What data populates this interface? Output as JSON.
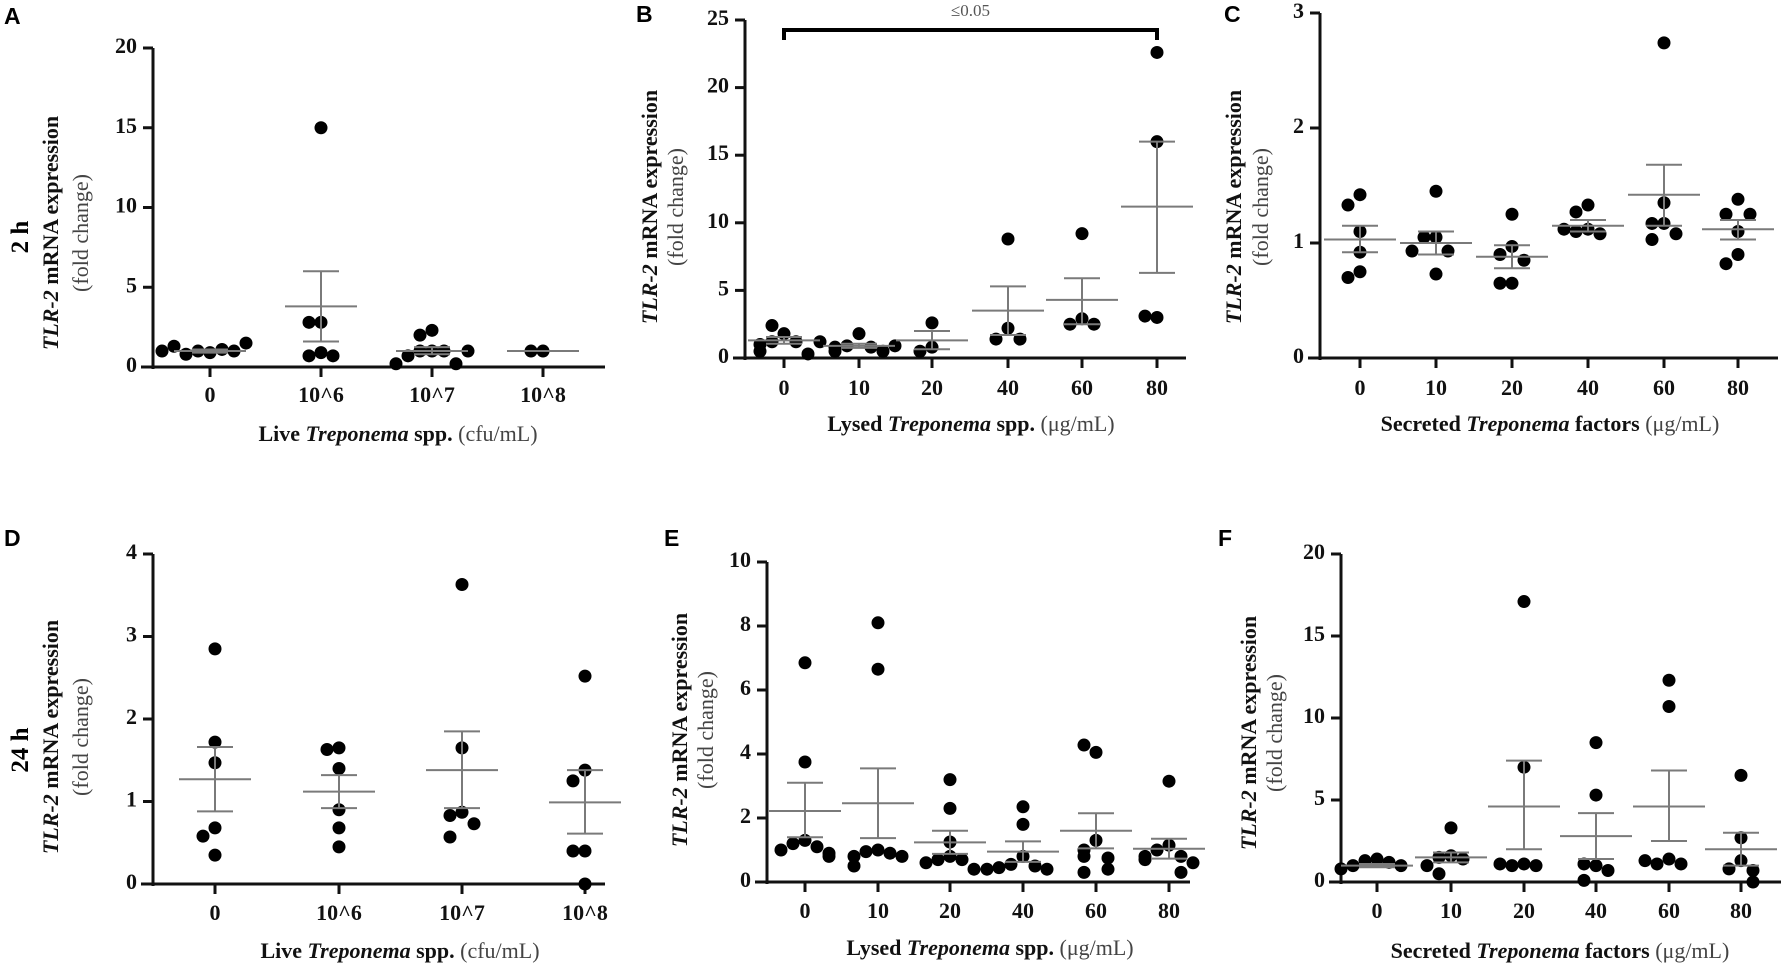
{
  "row_labels": [
    "2 h",
    "24 h"
  ],
  "chart_data": [
    {
      "panel": "A",
      "type": "scatter",
      "row": 0,
      "categories": [
        "0",
        "10^6",
        "10^7",
        "10^8"
      ],
      "ylim": [
        0,
        20
      ],
      "yticks": [
        "0",
        "5",
        "10",
        "15",
        "20"
      ],
      "ylabel": [
        {
          "text": "TLR-2",
          "style": "bi"
        },
        {
          "text": " mRNA expression",
          "style": "b"
        }
      ],
      "ylabel2": "(fold change)",
      "xlabel": [
        {
          "text": "Live ",
          "style": "b"
        },
        {
          "text": "Treponema",
          "style": "bi"
        },
        {
          "text": " spp. ",
          "style": "b"
        },
        {
          "text": "(cfu/mL)",
          "style": "r"
        }
      ],
      "groups": [
        {
          "points": [
            0.9,
            1.0,
            1.1,
            0.8,
            1.0,
            1.3,
            1.5,
            1.0
          ],
          "mean": 1.0,
          "sem_upper": 1.1,
          "sem_lower": 0.9
        },
        {
          "points": [
            15.0,
            2.8,
            2.8,
            0.9,
            0.7,
            0.7
          ],
          "mean": 3.8,
          "sem_upper": 6.0,
          "sem_lower": 1.6
        },
        {
          "points": [
            2.3,
            2.0,
            1.0,
            1.0,
            1.0,
            0.7,
            0.2,
            0.2,
            1.0
          ],
          "mean": 1.0,
          "sem_upper": 1.25,
          "sem_lower": 0.8
        },
        {
          "points": [
            1.0,
            1.0
          ],
          "mean": 1.0,
          "sem_upper": 1.0,
          "sem_lower": 1.0
        }
      ]
    },
    {
      "panel": "B",
      "type": "scatter",
      "row": 0,
      "categories": [
        "0",
        "10",
        "20",
        "40",
        "60",
        "80"
      ],
      "ylim": [
        0,
        25
      ],
      "yticks": [
        "0",
        "5",
        "10",
        "15",
        "20",
        "25"
      ],
      "ylabel": [
        {
          "text": "TLR-2",
          "style": "bi"
        },
        {
          "text": " mRNA expression",
          "style": "b"
        }
      ],
      "ylabel2": "(fold change)",
      "xlabel": [
        {
          "text": "Lysed ",
          "style": "b"
        },
        {
          "text": "Treponema",
          "style": "bi"
        },
        {
          "text": " spp. ",
          "style": "b"
        },
        {
          "text": "(μg/mL)",
          "style": "r"
        }
      ],
      "significance": {
        "from": "0",
        "to": "80",
        "label": "≤0.05"
      },
      "groups": [
        {
          "points": [
            1.8,
            2.4,
            1.2,
            1.2,
            1.0,
            0.5,
            0.3,
            1.2
          ],
          "mean": 1.3,
          "sem_upper": 1.55,
          "sem_lower": 1.05
        },
        {
          "points": [
            1.8,
            0.9,
            0.8,
            0.8,
            0.5,
            0.5,
            0.9
          ],
          "mean": 0.9,
          "sem_upper": 1.05,
          "sem_lower": 0.75
        },
        {
          "points": [
            2.6,
            0.8,
            0.5
          ],
          "mean": 1.3,
          "sem_upper": 2.0,
          "sem_lower": 0.65
        },
        {
          "points": [
            8.8,
            2.2,
            1.4,
            1.4
          ],
          "mean": 3.5,
          "sem_upper": 5.3,
          "sem_lower": 1.7
        },
        {
          "points": [
            9.2,
            2.9,
            2.5,
            2.5
          ],
          "mean": 4.3,
          "sem_upper": 5.9,
          "sem_lower": 2.5
        },
        {
          "points": [
            22.6,
            16.0,
            3.0,
            3.1
          ],
          "mean": 11.2,
          "sem_upper": 16.0,
          "sem_lower": 6.3
        }
      ]
    },
    {
      "panel": "C",
      "type": "scatter",
      "row": 0,
      "categories": [
        "0",
        "10",
        "20",
        "40",
        "60",
        "80"
      ],
      "ylim": [
        0,
        3
      ],
      "yticks": [
        "0",
        "1",
        "2",
        "3"
      ],
      "ylabel": [
        {
          "text": "TLR-2",
          "style": "bi"
        },
        {
          "text": " mRNA expression",
          "style": "b"
        }
      ],
      "ylabel2": "(fold change)",
      "xlabel": [
        {
          "text": "Secreted ",
          "style": "b"
        },
        {
          "text": "Treponema",
          "style": "bi"
        },
        {
          "text": " factors ",
          "style": "b"
        },
        {
          "text": "(μg/mL)",
          "style": "r"
        }
      ],
      "groups": [
        {
          "points": [
            1.42,
            1.33,
            1.1,
            0.92,
            0.75,
            0.7
          ],
          "mean": 1.03,
          "sem_upper": 1.15,
          "sem_lower": 0.92
        },
        {
          "points": [
            1.45,
            1.05,
            1.05,
            0.93,
            0.93,
            0.73
          ],
          "mean": 1.0,
          "sem_upper": 1.1,
          "sem_lower": 0.9
        },
        {
          "points": [
            1.25,
            0.97,
            0.9,
            0.85,
            0.65,
            0.65
          ],
          "mean": 0.88,
          "sem_upper": 0.98,
          "sem_lower": 0.78
        },
        {
          "points": [
            1.33,
            1.27,
            1.12,
            1.1,
            1.08,
            1.12
          ],
          "mean": 1.15,
          "sem_upper": 1.2,
          "sem_lower": 1.1
        },
        {
          "points": [
            2.74,
            1.35,
            1.17,
            1.17,
            1.08,
            1.03
          ],
          "mean": 1.42,
          "sem_upper": 1.68,
          "sem_lower": 1.15
        },
        {
          "points": [
            1.38,
            1.25,
            1.25,
            1.1,
            0.9,
            0.82
          ],
          "mean": 1.12,
          "sem_upper": 1.2,
          "sem_lower": 1.03
        }
      ]
    },
    {
      "panel": "D",
      "type": "scatter",
      "row": 1,
      "categories": [
        "0",
        "10^6",
        "10^7",
        "10^8"
      ],
      "ylim": [
        0,
        4
      ],
      "yticks": [
        "0",
        "1",
        "2",
        "3",
        "4"
      ],
      "ylabel": [
        {
          "text": "TLR-2",
          "style": "bi"
        },
        {
          "text": " mRNA expression",
          "style": "b"
        }
      ],
      "ylabel2": "(fold change)",
      "xlabel": [
        {
          "text": "Live ",
          "style": "b"
        },
        {
          "text": "Treponema",
          "style": "bi"
        },
        {
          "text": " spp. ",
          "style": "b"
        },
        {
          "text": "(cfu/mL)",
          "style": "r"
        }
      ],
      "groups": [
        {
          "points": [
            2.85,
            1.72,
            1.47,
            0.68,
            0.58,
            0.35
          ],
          "mean": 1.27,
          "sem_upper": 1.66,
          "sem_lower": 0.88
        },
        {
          "points": [
            1.65,
            1.63,
            1.4,
            0.9,
            0.68,
            0.45
          ],
          "mean": 1.12,
          "sem_upper": 1.32,
          "sem_lower": 0.92
        },
        {
          "points": [
            3.63,
            1.65,
            0.87,
            0.83,
            0.73,
            0.57
          ],
          "mean": 1.38,
          "sem_upper": 1.85,
          "sem_lower": 0.92
        },
        {
          "points": [
            2.52,
            1.38,
            1.25,
            0.4,
            0.4,
            0.0
          ],
          "mean": 0.99,
          "sem_upper": 1.38,
          "sem_lower": 0.61
        }
      ]
    },
    {
      "panel": "E",
      "type": "scatter",
      "row": 1,
      "categories": [
        "0",
        "10",
        "20",
        "40",
        "60",
        "80"
      ],
      "ylim": [
        0,
        10
      ],
      "yticks": [
        "0",
        "2",
        "4",
        "6",
        "8",
        "10"
      ],
      "ylabel": [
        {
          "text": "TLR-2",
          "style": "bi"
        },
        {
          "text": " mRNA expression",
          "style": "b"
        }
      ],
      "ylabel2": "(fold change)",
      "xlabel": [
        {
          "text": "Lysed ",
          "style": "b"
        },
        {
          "text": "Treponema",
          "style": "bi"
        },
        {
          "text": " spp. ",
          "style": "b"
        },
        {
          "text": "(μg/mL)",
          "style": "r"
        }
      ],
      "groups": [
        {
          "points": [
            6.85,
            3.75,
            1.3,
            1.2,
            1.1,
            1.0,
            0.9,
            0.8
          ],
          "mean": 2.22,
          "sem_upper": 3.1,
          "sem_lower": 1.4
        },
        {
          "points": [
            8.1,
            6.65,
            1.0,
            0.95,
            0.9,
            0.8,
            0.8,
            0.5
          ],
          "mean": 2.46,
          "sem_upper": 3.55,
          "sem_lower": 1.37
        },
        {
          "points": [
            3.2,
            2.3,
            1.25,
            0.8,
            0.7,
            0.7,
            0.6,
            0.4
          ],
          "mean": 1.24,
          "sem_upper": 1.6,
          "sem_lower": 0.88
        },
        {
          "points": [
            2.35,
            1.8,
            0.8,
            0.55,
            0.5,
            0.45,
            0.4,
            0.4
          ],
          "mean": 0.95,
          "sem_upper": 1.27,
          "sem_lower": 0.63
        },
        {
          "points": [
            4.05,
            4.28,
            1.3,
            1.0,
            0.8,
            0.75,
            0.4,
            0.3
          ],
          "mean": 1.6,
          "sem_upper": 2.15,
          "sem_lower": 1.05
        },
        {
          "points": [
            3.15,
            1.15,
            1.0,
            0.8,
            0.8,
            0.7,
            0.6,
            0.3
          ],
          "mean": 1.04,
          "sem_upper": 1.35,
          "sem_lower": 0.73
        }
      ]
    },
    {
      "panel": "F",
      "type": "scatter",
      "row": 1,
      "categories": [
        "0",
        "10",
        "20",
        "40",
        "60",
        "80"
      ],
      "ylim": [
        0,
        20
      ],
      "yticks": [
        "0",
        "5",
        "10",
        "15",
        "20"
      ],
      "ylabel": [
        {
          "text": "TLR-2",
          "style": "bi"
        },
        {
          "text": " mRNA expression",
          "style": "b"
        }
      ],
      "ylabel2": "(fold change)",
      "xlabel": [
        {
          "text": "Secreted ",
          "style": "b"
        },
        {
          "text": "Treponema",
          "style": "bi"
        },
        {
          "text": " factors ",
          "style": "b"
        },
        {
          "text": "(μg/mL)",
          "style": "r"
        }
      ],
      "groups": [
        {
          "points": [
            1.4,
            1.3,
            1.2,
            1.0,
            1.0,
            0.8
          ],
          "mean": 1.0,
          "sem_upper": 1.1,
          "sem_lower": 0.9
        },
        {
          "points": [
            3.3,
            1.6,
            1.5,
            1.4,
            1.0,
            0.5
          ],
          "mean": 1.5,
          "sem_upper": 1.8,
          "sem_lower": 1.2
        },
        {
          "points": [
            17.1,
            7.0,
            1.1,
            1.0,
            1.0,
            1.1
          ],
          "mean": 4.6,
          "sem_upper": 7.4,
          "sem_lower": 2.0
        },
        {
          "points": [
            8.5,
            5.3,
            1.0,
            1.1,
            0.7,
            0.1
          ],
          "mean": 2.8,
          "sem_upper": 4.2,
          "sem_lower": 1.4
        },
        {
          "points": [
            12.3,
            10.7,
            1.4,
            1.1,
            1.1,
            1.3
          ],
          "mean": 4.6,
          "sem_upper": 6.8,
          "sem_lower": 2.5
        },
        {
          "points": [
            6.5,
            2.7,
            1.3,
            0.8,
            0.7,
            0.0
          ],
          "mean": 2.0,
          "sem_upper": 3.0,
          "sem_lower": 1.0
        }
      ]
    }
  ],
  "colors": {
    "points": "#000000",
    "axis": "#111111",
    "mean_line": "#7a7a7a"
  }
}
